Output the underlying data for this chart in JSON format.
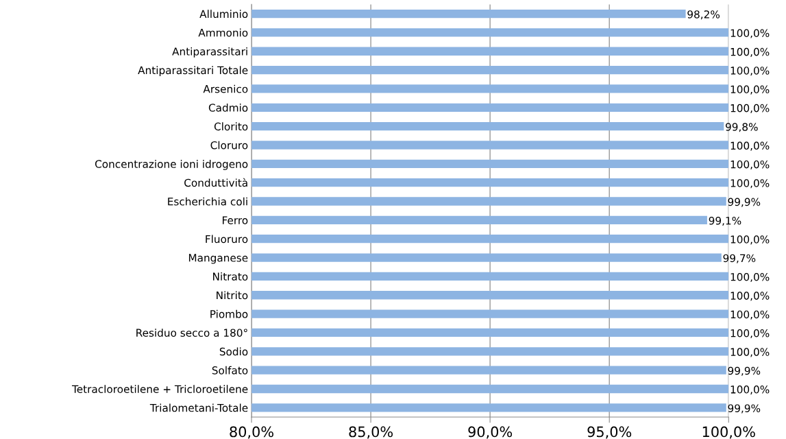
{
  "chart_data": {
    "type": "bar",
    "orientation": "horizontal",
    "categories": [
      "Alluminio",
      "Ammonio",
      "Antiparassitari",
      "Antiparassitari Totale",
      "Arsenico",
      "Cadmio",
      "Clorito",
      "Cloruro",
      "Concentrazione ioni idrogeno",
      "Conduttività",
      "Escherichia coli",
      "Ferro",
      "Fluoruro",
      "Manganese",
      "Nitrato",
      "Nitrito",
      "Piombo",
      "Residuo secco a 180°",
      "Sodio",
      "Solfato",
      "Tetracloroetilene + Tricloroetilene",
      "Trialometani-Totale"
    ],
    "values": [
      98.2,
      100.0,
      100.0,
      100.0,
      100.0,
      100.0,
      99.8,
      100.0,
      100.0,
      100.0,
      99.9,
      99.1,
      100.0,
      99.7,
      100.0,
      100.0,
      100.0,
      100.0,
      100.0,
      99.9,
      100.0,
      99.9
    ],
    "value_labels": [
      "98,2%",
      "100,0%",
      "100,0%",
      "100,0%",
      "100,0%",
      "100,0%",
      "99,8%",
      "100,0%",
      "100,0%",
      "100,0%",
      "99,9%",
      "99,1%",
      "100,0%",
      "99,7%",
      "100,0%",
      "100,0%",
      "100,0%",
      "100,0%",
      "100,0%",
      "99,9%",
      "100,0%",
      "99,9%"
    ],
    "color": "#8db4e2",
    "xlim": [
      80,
      100
    ],
    "xticks": [
      {
        "value": 80,
        "label": "80,0%"
      },
      {
        "value": 85,
        "label": "85,0%"
      },
      {
        "value": 90,
        "label": "90,0%"
      },
      {
        "value": 95,
        "label": "95,0%"
      },
      {
        "value": 100,
        "label": "100,0%"
      }
    ],
    "grid": "x",
    "legend": false
  }
}
